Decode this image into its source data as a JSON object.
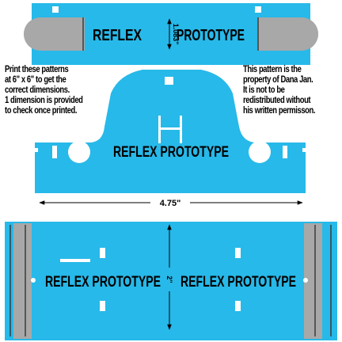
{
  "colors": {
    "pattern_fill": "#27b9e9",
    "strap_gray": "#a8a8a8",
    "ink": "#000000",
    "paper": "#ffffff"
  },
  "top_strap": {
    "title_left": "REFLEX",
    "dimension_label": "1.083\"",
    "title_right": "PROTOTYPE"
  },
  "notes": {
    "left": [
      "Print these patterns",
      "at 6\" x 6\" to get the",
      "correct dimensions.",
      "1 dimension is provided",
      "to check once printed."
    ],
    "right": [
      "This pattern is the",
      "property of Dana Jan.",
      "It is not to be",
      "redistributed without",
      "his written permisson."
    ]
  },
  "middle_piece": {
    "title": "REFLEX PROTOTYPE",
    "width_label": "4.75\""
  },
  "bottom_piece": {
    "title_left": "REFLEX PROTOTYPE",
    "dimension_label": "2\"",
    "title_right": "REFLEX PROTOTYPE"
  }
}
